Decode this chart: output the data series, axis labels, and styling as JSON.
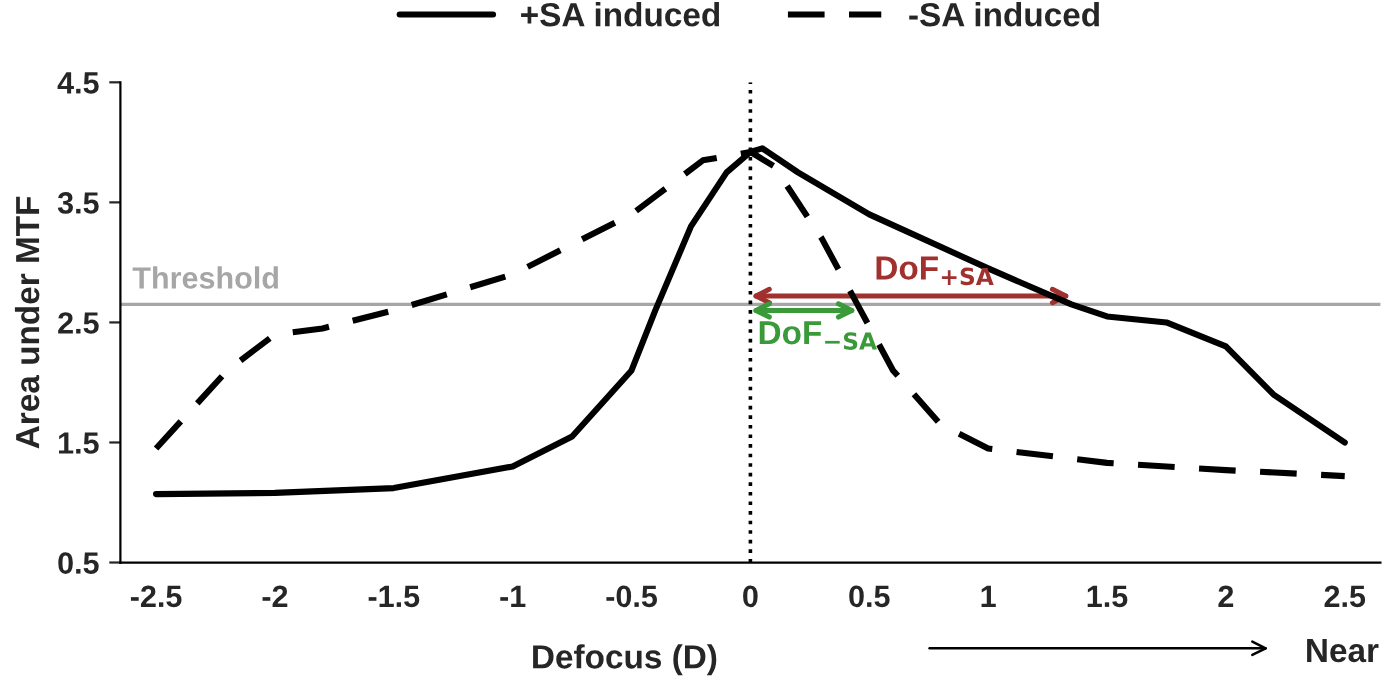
{
  "chart_data": {
    "type": "line",
    "xlabel": "Defocus (D)",
    "ylabel": "Area under MTF",
    "x": [
      -2.5,
      -2,
      -1.5,
      -1,
      -0.75,
      -0.5,
      -0.4,
      -0.25,
      -0.1,
      0,
      0.05,
      0.2,
      0.5,
      1,
      1.35,
      1.5,
      1.75,
      2,
      2.2,
      2.5
    ],
    "series": [
      {
        "name": "+SA induced",
        "color": "#000000",
        "line_style": "solid",
        "values": [
          1.07,
          1.08,
          1.12,
          1.3,
          1.55,
          2.1,
          2.6,
          3.3,
          3.75,
          3.92,
          3.95,
          3.75,
          3.4,
          2.95,
          2.65,
          2.55,
          2.5,
          2.3,
          1.9,
          1.5
        ]
      },
      {
        "name": "-SA induced",
        "color": "#000000",
        "line_style": "dashed",
        "x": [
          -2.5,
          -2.2,
          -2,
          -1.8,
          -1.5,
          -1,
          -0.5,
          -0.4,
          -0.2,
          0,
          0.1,
          0.3,
          0.45,
          0.6,
          0.8,
          1,
          1.5,
          2,
          2.5
        ],
        "values": [
          1.45,
          2.1,
          2.4,
          2.45,
          2.6,
          2.9,
          3.4,
          3.55,
          3.85,
          3.92,
          3.8,
          3.2,
          2.65,
          2.1,
          1.65,
          1.45,
          1.33,
          1.27,
          1.22
        ]
      }
    ],
    "xlim": [
      -2.65,
      2.65
    ],
    "xticks": [
      -2.5,
      -2,
      -1.5,
      -1,
      -0.5,
      0,
      0.5,
      1,
      1.5,
      2,
      2.5
    ],
    "ylim": [
      0.5,
      4.5
    ],
    "yticks": [
      0.5,
      1.5,
      2.5,
      3.5,
      4.5
    ],
    "ref_lines": [
      {
        "axis": "y",
        "value": 2.65,
        "label": "Threshold",
        "color": "#a6a6a6",
        "line_style": "solid"
      },
      {
        "axis": "x",
        "value": 0,
        "color": "#000000",
        "line_style": "dotted"
      }
    ],
    "annotations": [
      {
        "text": "DoF$_{+SA}$",
        "x": 1.35,
        "y": 2.72
      },
      {
        "text": "DoF$_{−SA}$",
        "x": 0.45,
        "y": 2.6
      },
      "Near"
    ],
    "legend": "top",
    "grid": false,
    "marker": "none"
  }
}
